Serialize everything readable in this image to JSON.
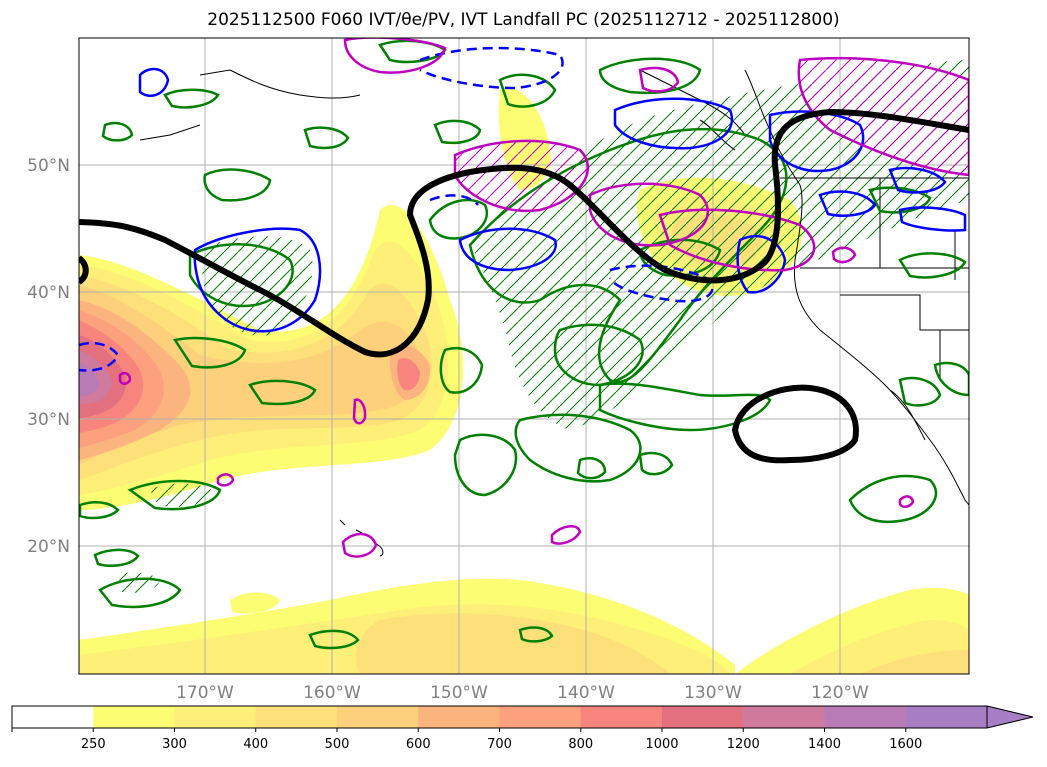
{
  "title": "2025112500 F060 IVT/θe/PV, IVT Landfall PC (2025112712 - 2025112800)",
  "latitude_labels": [
    "50°N",
    "40°N",
    "30°N",
    "20°N"
  ],
  "longitude_labels": [
    "170°W",
    "160°W",
    "150°W",
    "140°W",
    "130°W",
    "120°W"
  ],
  "colorbar": {
    "ticks": [
      "250",
      "300",
      "400",
      "500",
      "600",
      "700",
      "800",
      "1000",
      "1200",
      "1400",
      "1600"
    ],
    "colors": [
      "#ffffff",
      "#fdfd74",
      "#fdef78",
      "#fde07a",
      "#fdd07c",
      "#fcb47e",
      "#fca07e",
      "#f7857d",
      "#e2707f",
      "#d07a9e",
      "#b97bb5",
      "#a77dc4"
    ],
    "extend": "max"
  },
  "colors": {
    "contour_green": "#008000",
    "contour_blue": "#0000ff",
    "contour_magenta": "#bf00bf",
    "theta_e_black": "#000000",
    "grid": "#b0b0b0",
    "tick_label": "#808080"
  }
}
